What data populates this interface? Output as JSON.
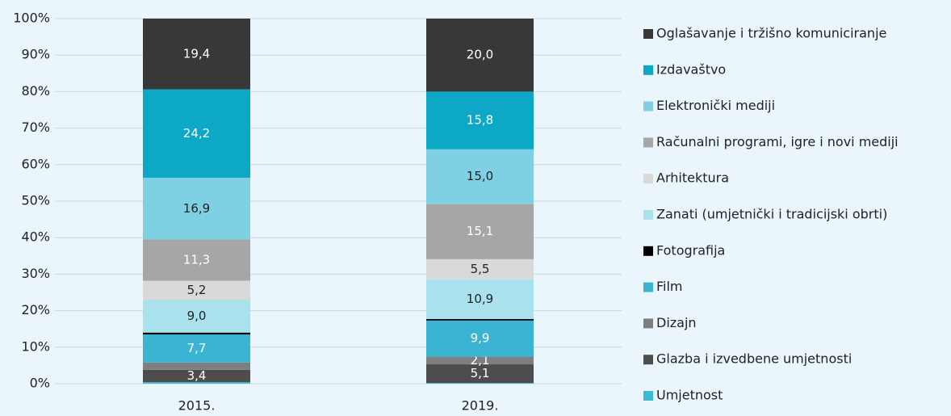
{
  "chart_data": {
    "type": "stacked_bar",
    "categories": [
      "2015.",
      "2019."
    ],
    "series": [
      {
        "name": "Umjetnost",
        "color": "#3bbcd6",
        "values": [
          0.4,
          0.2
        ],
        "value_labels": [
          null,
          null
        ]
      },
      {
        "name": "Glazba i izvedbene umjetnosti",
        "color": "#4d4d4d",
        "values": [
          3.4,
          5.1
        ],
        "value_labels": [
          "3,4",
          "5,1"
        ]
      },
      {
        "name": "Dizajn",
        "color": "#7f7f7f",
        "values": [
          2.0,
          2.1
        ],
        "value_labels": [
          null,
          "2,1"
        ]
      },
      {
        "name": "Film",
        "color": "#3ab4d2",
        "values": [
          7.7,
          9.9
        ],
        "value_labels": [
          "7,7",
          "9,9"
        ]
      },
      {
        "name": "Fotografija",
        "color": "#000000",
        "values": [
          0.5,
          0.4
        ],
        "value_labels": [
          null,
          null
        ]
      },
      {
        "name": "Zanati (umjetnički i tradicijski obrti)",
        "color": "#a9e1ed",
        "values": [
          9.0,
          10.9
        ],
        "value_labels": [
          "9,0",
          "10,9"
        ]
      },
      {
        "name": "Arhitektura",
        "color": "#d9d9d9",
        "values": [
          5.2,
          5.5
        ],
        "value_labels": [
          "5,2",
          "5,5"
        ]
      },
      {
        "name": "Računalni programi, igre i novi mediji",
        "color": "#a6a6a6",
        "values": [
          11.3,
          15.1
        ],
        "value_labels": [
          "11,3",
          "15,1"
        ]
      },
      {
        "name": "Elektronički mediji",
        "color": "#7fd0e2",
        "values": [
          16.9,
          15.0
        ],
        "value_labels": [
          "16,9",
          "15,0"
        ]
      },
      {
        "name": "Izdavaštvo",
        "color": "#0ea8c7",
        "values": [
          24.2,
          15.8
        ],
        "value_labels": [
          "24,2",
          "15,8"
        ]
      },
      {
        "name": "Oglašavanje i tržišno komuniciranje",
        "color": "#383838",
        "values": [
          19.4,
          20.0
        ],
        "value_labels": [
          "19,4",
          "20,0"
        ]
      }
    ],
    "ylim": [
      0,
      100
    ],
    "yticks": [
      {
        "value": 0,
        "label": "0%"
      },
      {
        "value": 10,
        "label": "10%"
      },
      {
        "value": 20,
        "label": "20%"
      },
      {
        "value": 30,
        "label": "30%"
      },
      {
        "value": 40,
        "label": "40%"
      },
      {
        "value": 50,
        "label": "50%"
      },
      {
        "value": 60,
        "label": "60%"
      },
      {
        "value": 70,
        "label": "70%"
      },
      {
        "value": 80,
        "label": "80%"
      },
      {
        "value": 90,
        "label": "90%"
      },
      {
        "value": 100,
        "label": "100%"
      }
    ],
    "grid": true,
    "legend": "right"
  }
}
